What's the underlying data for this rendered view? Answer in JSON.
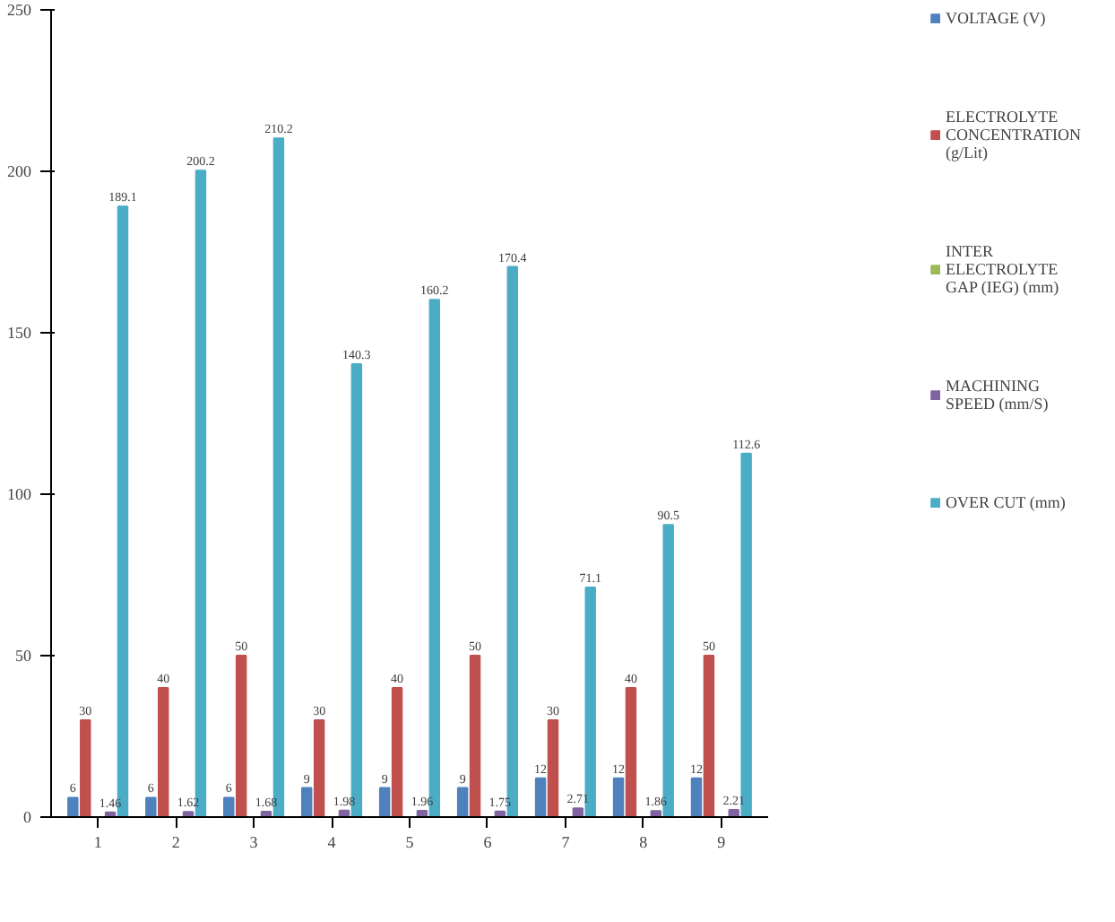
{
  "chart_data": {
    "type": "bar",
    "categories": [
      "1",
      "2",
      "3",
      "4",
      "5",
      "6",
      "7",
      "8",
      "9"
    ],
    "series": [
      {
        "name": "VOLTAGE (V)",
        "color": "#4f81bd",
        "values": [
          6,
          6,
          6,
          9,
          9,
          9,
          12,
          12,
          12
        ]
      },
      {
        "name": "ELECTROLYTE CONCENTRATION (g/Lit)",
        "color": "#c0504d",
        "values": [
          30,
          40,
          50,
          30,
          40,
          50,
          30,
          40,
          50
        ]
      },
      {
        "name": "INTER ELECTROLYTE GAP (IEG) (mm)",
        "color": "#9bbb59",
        "values": [
          null,
          null,
          null,
          null,
          null,
          null,
          null,
          null,
          null
        ]
      },
      {
        "name": "MACHINING SPEED (mm/S)",
        "color": "#8064a2",
        "values": [
          1.46,
          1.62,
          1.68,
          1.98,
          1.96,
          1.75,
          2.71,
          1.86,
          2.21
        ]
      },
      {
        "name": "OVER CUT (mm)",
        "color": "#4bacc6",
        "values": [
          189.1,
          200.2,
          210.2,
          140.3,
          160.2,
          170.4,
          71.1,
          90.5,
          112.6
        ]
      }
    ],
    "ylim": [
      0,
      250
    ],
    "yticks": [
      0,
      50,
      100,
      150,
      200,
      250
    ],
    "data_labels": true,
    "legend": "right",
    "grid": false
  }
}
